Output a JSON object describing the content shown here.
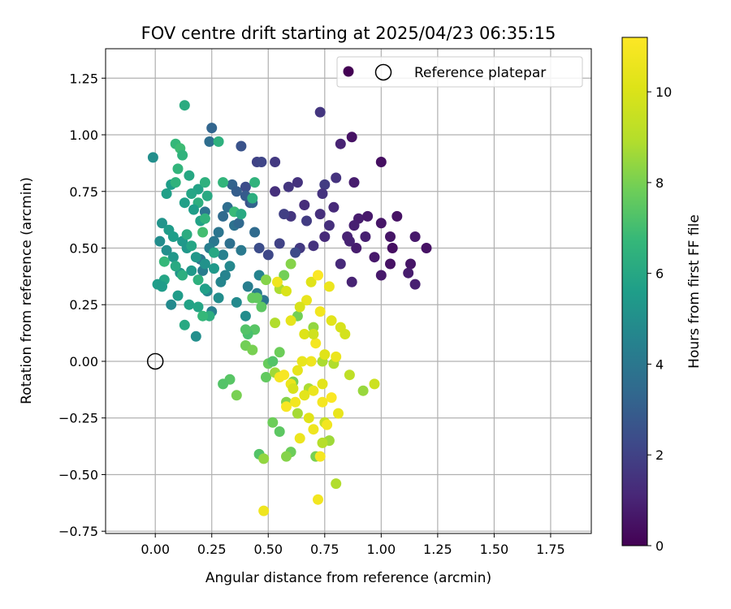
{
  "chart_data": {
    "type": "scatter",
    "title": "FOV centre drift starting at 2025/04/23 06:35:15",
    "xlabel": "Angular distance from reference (arcmin)",
    "ylabel": "Rotation from reference (arcmin)",
    "xlim": [
      -0.22,
      1.93
    ],
    "ylim": [
      -0.76,
      1.38
    ],
    "xticks": [
      "0.00",
      "0.25",
      "0.50",
      "0.75",
      "1.00",
      "1.25",
      "1.50",
      "1.75"
    ],
    "yticks": [
      "−0.75",
      "−0.50",
      "−0.25",
      "0.00",
      "0.25",
      "0.50",
      "0.75",
      "1.00",
      "1.25"
    ],
    "grid": true,
    "colormap": "viridis",
    "colorbar": {
      "label": "Hours from first FF file",
      "range": [
        0,
        11.2
      ],
      "ticks": [
        "0",
        "2",
        "4",
        "6",
        "8",
        "10"
      ]
    },
    "legend": {
      "placement": "top-right",
      "entries": [
        {
          "label": "",
          "marker": "filled-circle",
          "color": "#440154"
        },
        {
          "label": "Reference platepar",
          "marker": "open-circle",
          "color": "#000000"
        }
      ]
    },
    "reference_point": {
      "x": 0.0,
      "y": 0.0
    },
    "series": [
      {
        "x": [
          0.87,
          1.0,
          0.82,
          0.88,
          0.73,
          0.8,
          0.53,
          0.45,
          0.47,
          0.63,
          0.53,
          0.59,
          0.75,
          0.9,
          0.94,
          1.0,
          1.07,
          0.88,
          1.04,
          1.15,
          1.2,
          1.05,
          0.93,
          0.85,
          0.89,
          0.97,
          1.04,
          1.13,
          1.12,
          1.15,
          1.0,
          0.87,
          0.79,
          0.74,
          0.66,
          0.6,
          0.73,
          0.86,
          0.75,
          0.7,
          0.64,
          0.55,
          0.5,
          0.46,
          0.42,
          0.4,
          0.57,
          0.67,
          0.77,
          0.82,
          0.62
        ],
        "y": [
          0.99,
          0.88,
          0.96,
          0.79,
          1.1,
          0.81,
          0.88,
          0.88,
          0.88,
          0.79,
          0.75,
          0.77,
          0.78,
          0.63,
          0.64,
          0.61,
          0.64,
          0.6,
          0.55,
          0.55,
          0.5,
          0.5,
          0.55,
          0.55,
          0.5,
          0.46,
          0.43,
          0.43,
          0.39,
          0.34,
          0.38,
          0.35,
          0.68,
          0.74,
          0.69,
          0.64,
          0.65,
          0.53,
          0.55,
          0.51,
          0.5,
          0.52,
          0.47,
          0.5,
          0.7,
          0.77,
          0.65,
          0.62,
          0.6,
          0.43,
          0.48
        ],
        "hours": [
          0.5,
          0.4,
          1.0,
          0.8,
          1.6,
          1.5,
          1.7,
          2.0,
          2.1,
          1.5,
          1.4,
          1.6,
          1.8,
          0.8,
          0.7,
          0.6,
          0.5,
          0.9,
          0.6,
          0.7,
          0.5,
          0.4,
          0.9,
          1.0,
          0.8,
          0.7,
          0.5,
          0.6,
          0.8,
          0.9,
          0.7,
          1.0,
          1.2,
          1.5,
          1.3,
          1.6,
          1.4,
          1.0,
          1.2,
          1.5,
          1.7,
          2.0,
          2.2,
          2.4,
          2.5,
          2.4,
          1.9,
          1.8,
          1.4,
          1.2,
          2.3
        ]
      },
      {
        "x": [
          0.25,
          0.24,
          0.38,
          0.34,
          0.36,
          0.4,
          0.43,
          0.32,
          0.22,
          0.3,
          0.35,
          0.44,
          0.28,
          0.26,
          0.33,
          0.38,
          0.24,
          0.2,
          0.21,
          0.31,
          0.29,
          0.41,
          0.45,
          0.48,
          0.36,
          0.28,
          0.25,
          0.23,
          0.4,
          0.46,
          0.33,
          0.3,
          0.37
        ],
        "y": [
          1.03,
          0.97,
          0.95,
          0.78,
          0.75,
          0.73,
          0.7,
          0.68,
          0.66,
          0.64,
          0.6,
          0.57,
          0.57,
          0.53,
          0.52,
          0.49,
          0.5,
          0.45,
          0.4,
          0.38,
          0.35,
          0.33,
          0.3,
          0.27,
          0.26,
          0.28,
          0.22,
          0.31,
          0.2,
          0.38,
          0.42,
          0.47,
          0.61
        ],
        "hours": [
          3.3,
          3.6,
          2.6,
          3.2,
          3.0,
          2.9,
          3.2,
          3.6,
          3.9,
          3.5,
          3.8,
          3.5,
          3.9,
          4.0,
          3.7,
          4.1,
          4.3,
          4.0,
          4.2,
          4.5,
          4.6,
          4.3,
          4.2,
          3.9,
          4.8,
          4.9,
          4.4,
          4.7,
          4.9,
          4.5,
          4.7,
          4.4,
          3.4
        ]
      },
      {
        "x": [
          0.13,
          0.09,
          0.11,
          0.12,
          -0.01,
          0.07,
          0.05,
          0.09,
          0.15,
          0.19,
          0.23,
          0.22,
          0.19,
          0.16,
          0.28,
          0.3,
          0.35,
          0.38,
          0.44,
          0.43,
          0.1,
          0.13,
          0.17,
          0.2,
          0.03,
          0.06,
          0.08,
          0.12,
          0.14,
          0.05,
          0.02,
          0.08,
          0.18,
          0.22,
          0.16,
          0.11,
          0.26,
          0.22,
          0.04,
          0.01,
          0.1,
          0.15,
          0.19,
          0.24,
          0.18,
          0.13,
          0.07,
          0.03,
          0.21,
          0.12,
          0.09,
          0.16,
          0.14,
          0.22,
          0.26,
          0.04,
          0.19
        ],
        "y": [
          1.13,
          0.96,
          0.94,
          0.91,
          0.9,
          0.78,
          0.74,
          0.79,
          0.82,
          0.76,
          0.73,
          0.79,
          0.7,
          0.74,
          0.97,
          0.79,
          0.66,
          0.65,
          0.79,
          0.72,
          0.85,
          0.7,
          0.67,
          0.62,
          0.61,
          0.58,
          0.55,
          0.53,
          0.5,
          0.49,
          0.53,
          0.46,
          0.46,
          0.43,
          0.4,
          0.39,
          0.41,
          0.32,
          0.36,
          0.34,
          0.29,
          0.25,
          0.24,
          0.2,
          0.11,
          0.16,
          0.25,
          0.33,
          0.57,
          0.38,
          0.42,
          0.51,
          0.56,
          0.63,
          0.48,
          0.44,
          0.36
        ],
        "hours": [
          6.2,
          6.7,
          6.9,
          6.5,
          5.0,
          5.6,
          5.7,
          6.5,
          6.0,
          5.8,
          6.1,
          6.4,
          6.3,
          5.9,
          6.4,
          6.6,
          6.8,
          6.1,
          6.5,
          6.3,
          6.6,
          5.7,
          5.6,
          5.8,
          5.2,
          5.5,
          5.6,
          5.4,
          5.3,
          5.0,
          4.9,
          5.3,
          5.3,
          5.1,
          5.4,
          5.2,
          5.4,
          5.7,
          5.9,
          5.6,
          5.5,
          5.8,
          5.9,
          6.3,
          5.0,
          6.1,
          4.8,
          5.5,
          7.0,
          6.3,
          6.1,
          5.9,
          6.2,
          6.5,
          6.0,
          6.7,
          6.4
        ]
      },
      {
        "x": [
          0.21,
          0.33,
          0.3,
          0.4,
          0.43,
          0.5,
          0.36,
          0.52,
          0.55,
          0.6,
          0.46,
          0.48,
          0.58,
          0.49,
          0.53,
          0.61,
          0.68,
          0.63,
          0.7,
          0.74,
          0.79,
          0.86,
          0.92,
          0.97,
          0.77,
          0.71,
          0.74,
          0.8,
          0.75,
          0.52,
          0.55,
          0.58,
          0.63,
          0.44,
          0.41,
          0.43,
          0.49,
          0.55,
          0.57,
          0.47,
          0.45,
          0.6,
          0.4,
          0.53
        ],
        "y": [
          0.2,
          -0.08,
          -0.1,
          0.07,
          0.05,
          -0.01,
          -0.15,
          -0.27,
          -0.31,
          -0.4,
          -0.41,
          -0.43,
          -0.42,
          -0.07,
          -0.05,
          -0.09,
          -0.12,
          0.2,
          0.15,
          0.0,
          -0.01,
          -0.06,
          -0.13,
          -0.1,
          -0.35,
          -0.42,
          -0.36,
          -0.54,
          -0.27,
          0.0,
          0.04,
          -0.18,
          -0.23,
          0.14,
          0.12,
          0.28,
          0.36,
          0.32,
          0.38,
          0.24,
          0.28,
          0.43,
          0.14,
          0.17
        ],
        "hours": [
          6.7,
          7.4,
          7.3,
          7.9,
          8.0,
          7.7,
          8.0,
          7.8,
          7.5,
          7.8,
          7.3,
          8.4,
          8.2,
          7.6,
          8.6,
          8.0,
          8.8,
          7.9,
          8.4,
          8.8,
          8.9,
          9.2,
          8.5,
          9.6,
          8.6,
          8.0,
          9.0,
          8.9,
          9.4,
          7.3,
          7.8,
          8.2,
          8.7,
          7.4,
          7.1,
          7.6,
          8.2,
          8.8,
          7.9,
          7.5,
          7.6,
          8.2,
          7.3,
          8.9
        ]
      },
      {
        "x": [
          0.48,
          0.72,
          0.73,
          0.64,
          0.7,
          0.58,
          0.62,
          0.66,
          0.7,
          0.74,
          0.78,
          0.81,
          0.76,
          0.68,
          0.6,
          0.55,
          0.57,
          0.63,
          0.69,
          0.75,
          0.8,
          0.71,
          0.66,
          0.6,
          0.67,
          0.73,
          0.78,
          0.64,
          0.58,
          0.54,
          0.69,
          0.72,
          0.77,
          0.61,
          0.65,
          0.74,
          0.7,
          0.82,
          0.84
        ],
        "y": [
          -0.66,
          -0.61,
          -0.42,
          -0.34,
          -0.3,
          -0.2,
          -0.18,
          -0.15,
          -0.13,
          -0.18,
          -0.16,
          -0.23,
          -0.28,
          -0.25,
          -0.1,
          -0.07,
          -0.06,
          -0.04,
          0.0,
          0.03,
          0.02,
          0.08,
          0.12,
          0.18,
          0.27,
          0.22,
          0.18,
          0.24,
          0.31,
          0.35,
          0.35,
          0.38,
          0.33,
          -0.12,
          0.0,
          -0.1,
          0.12,
          0.15,
          0.12
        ],
        "hours": [
          10.7,
          10.8,
          10.9,
          10.6,
          10.7,
          11.0,
          10.8,
          10.3,
          10.6,
          10.9,
          11.1,
          10.5,
          10.8,
          10.2,
          10.6,
          10.9,
          11.0,
          10.4,
          10.7,
          10.2,
          10.6,
          10.9,
          10.1,
          10.4,
          10.5,
          10.8,
          10.3,
          9.9,
          10.0,
          10.7,
          10.2,
          11.1,
          10.6,
          9.9,
          10.5,
          10.3,
          9.7,
          9.9,
          9.8
        ]
      }
    ]
  }
}
